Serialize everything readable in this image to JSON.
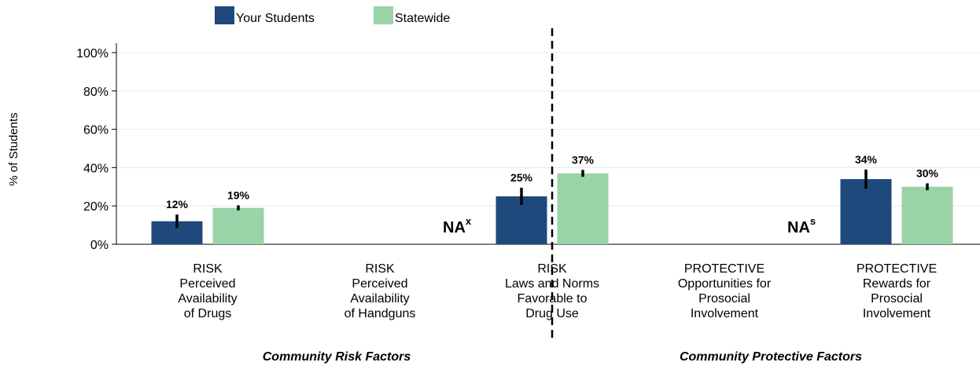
{
  "chart_data": {
    "type": "bar",
    "ylabel": "% of Students",
    "ylim": [
      0,
      100
    ],
    "yticks": [
      0,
      20,
      40,
      60,
      80,
      100
    ],
    "ytick_labels": [
      "0%",
      "20%",
      "40%",
      "60%",
      "80%",
      "100%"
    ],
    "grid": true,
    "legend_position": "top",
    "categories": [
      [
        "RISK",
        "Perceived",
        "Availability",
        "of Drugs"
      ],
      [
        "RISK",
        "Perceived",
        "Availability",
        "of Handguns"
      ],
      [
        "RISK",
        "Laws and Norms",
        "Favorable to",
        "Drug Use"
      ],
      [
        "PROTECTIVE",
        "Opportunities for",
        "Prosocial",
        "Involvement"
      ],
      [
        "PROTECTIVE",
        "Rewards for",
        "Prosocial",
        "Involvement"
      ]
    ],
    "series": [
      {
        "name": "Your Students",
        "color": "#1f497d",
        "values": [
          12,
          null,
          25,
          null,
          34
        ],
        "labels": [
          "12%",
          "",
          "25%",
          "",
          "34%"
        ],
        "errors": [
          3.5,
          null,
          4.5,
          null,
          5
        ]
      },
      {
        "name": "Statewide",
        "color": "#99d3a8",
        "values": [
          19,
          null,
          37,
          null,
          30
        ],
        "labels": [
          "19%",
          "",
          "37%",
          "",
          "30%"
        ],
        "errors": [
          1.3,
          null,
          1.8,
          null,
          1.8
        ]
      }
    ],
    "na_marks": [
      {
        "category": 1,
        "text": "NA",
        "superscript": "x"
      },
      {
        "category": 3,
        "text": "NA",
        "superscript": "s"
      }
    ],
    "groups": [
      "Community Risk Factors",
      "Community Protective Factors"
    ]
  }
}
